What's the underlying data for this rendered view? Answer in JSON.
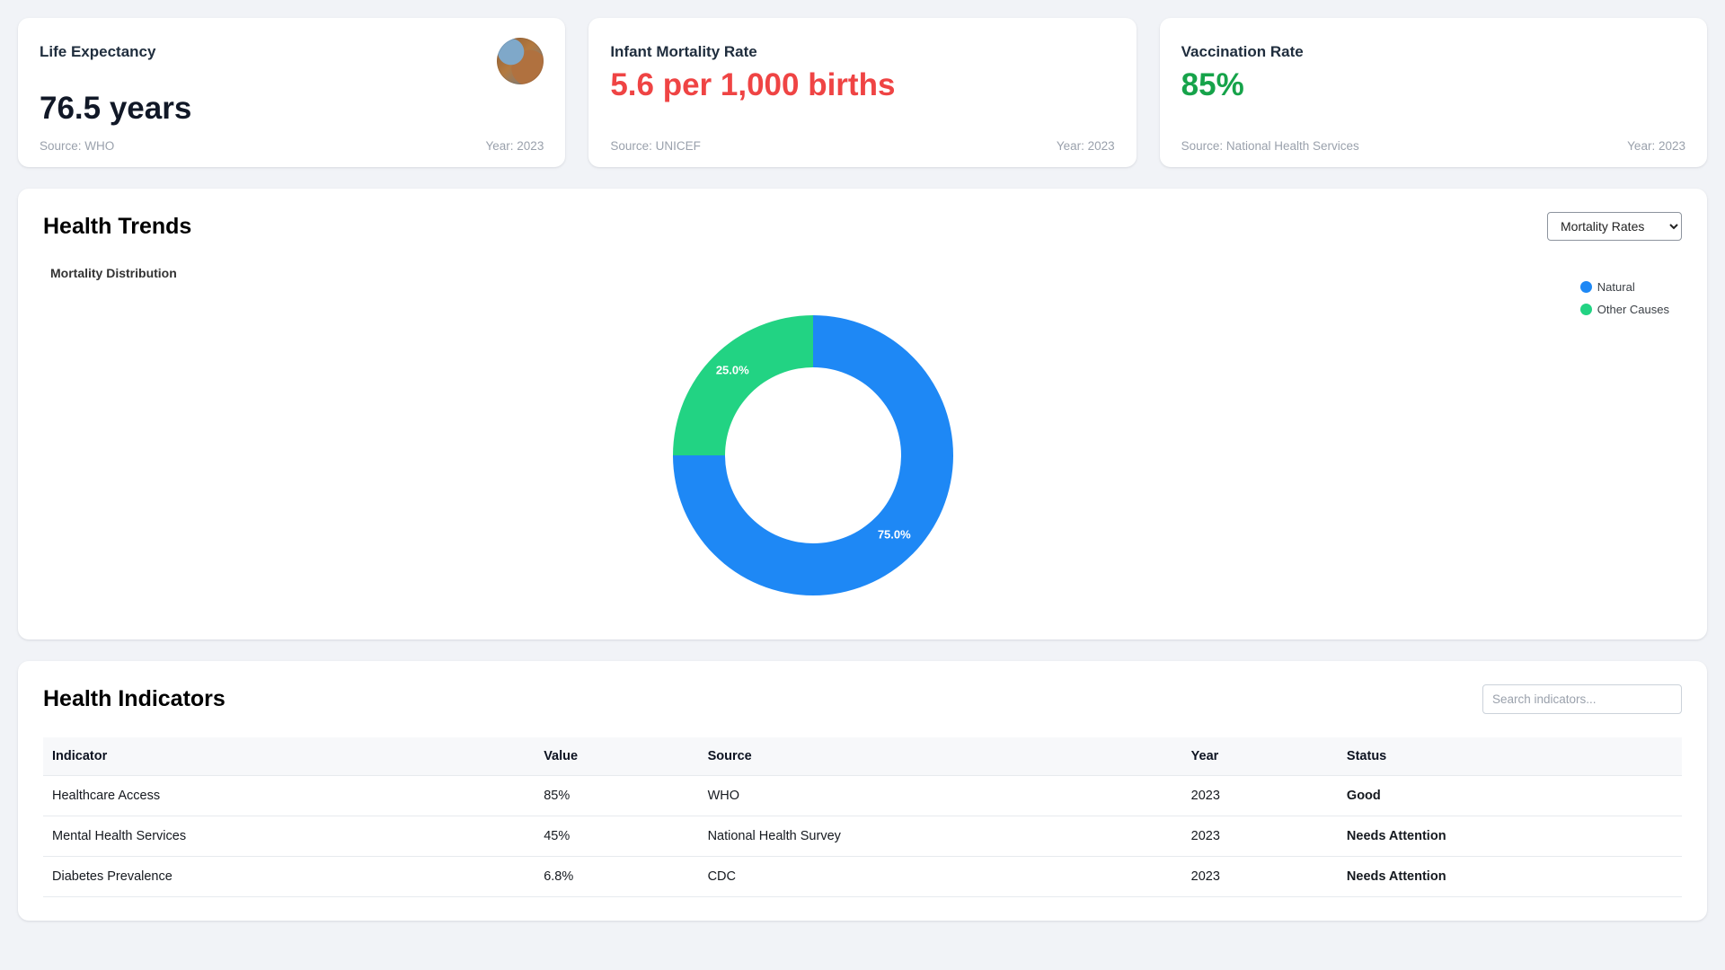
{
  "colors": {
    "chart-blue": "#1e88f5",
    "chart-green": "#22d383",
    "red": "#ef4444",
    "green": "#16a34a",
    "bg": "#f1f3f7"
  },
  "stat_cards": [
    {
      "title": "Life Expectancy",
      "value": "76.5 years",
      "source": "Source: WHO",
      "year": "Year: 2023"
    },
    {
      "title": "Infant Mortality Rate",
      "value": "5.6 per 1,000 births",
      "source": "Source: UNICEF",
      "year": "Year: 2023"
    },
    {
      "title": "Vaccination Rate",
      "value": "85%",
      "source": "Source: National Health Services",
      "year": "Year: 2023"
    }
  ],
  "health_trends": {
    "title": "Health Trends",
    "select_value": "Mortality Rates",
    "chart_title": "Mortality Distribution"
  },
  "chart_data": {
    "type": "pie",
    "subtype": "doughnut",
    "title": "Mortality Distribution",
    "categories": [
      "Natural",
      "Other Causes"
    ],
    "values": [
      75.0,
      25.0
    ],
    "value_labels": [
      "75.0%",
      "25.0%"
    ],
    "colors": [
      "#1e88f5",
      "#22d383"
    ],
    "legend_position": "top-right",
    "start_angle_deg": 0,
    "direction": "clockwise"
  },
  "health_indicators": {
    "title": "Health Indicators",
    "search_placeholder": "Search indicators...",
    "table": {
      "headers": [
        "Indicator",
        "Value",
        "Source",
        "Year",
        "Status"
      ],
      "rows": [
        {
          "indicator": "Healthcare Access",
          "value": "85%",
          "source": "WHO",
          "year": "2023",
          "status": "Good",
          "status_color": "#16a34a"
        },
        {
          "indicator": "Mental Health Services",
          "value": "45%",
          "source": "National Health Survey",
          "year": "2023",
          "status": "Needs Attention",
          "status_color": "#ef4444"
        },
        {
          "indicator": "Diabetes Prevalence",
          "value": "6.8%",
          "source": "CDC",
          "year": "2023",
          "status": "Needs Attention",
          "status_color": "#ef4444"
        }
      ]
    }
  }
}
